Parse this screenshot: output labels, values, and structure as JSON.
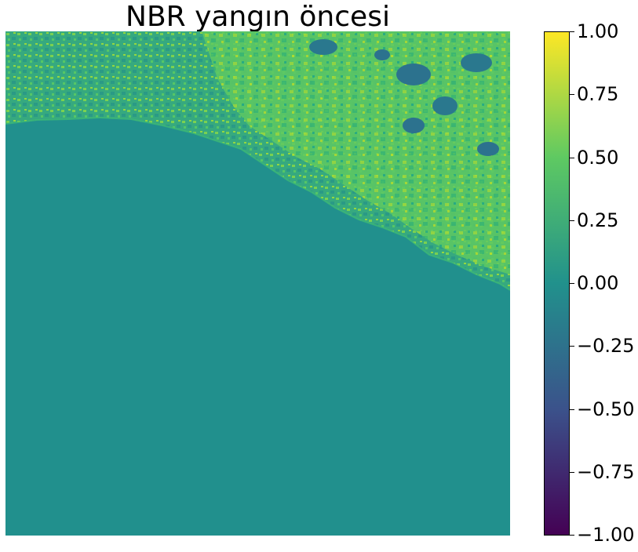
{
  "figure": {
    "title": "NBR yangın öncesi"
  },
  "image": {
    "description_colormap": "viridis"
  },
  "colorbar": {
    "colormap": "viridis",
    "range": [
      -1.0,
      1.0
    ],
    "ticks": [
      {
        "value": 1.0,
        "label": "1.00"
      },
      {
        "value": 0.75,
        "label": "0.75"
      },
      {
        "value": 0.5,
        "label": "0.50"
      },
      {
        "value": 0.25,
        "label": "0.25"
      },
      {
        "value": 0.0,
        "label": "0.00"
      },
      {
        "value": -0.25,
        "label": "−0.25"
      },
      {
        "value": -0.5,
        "label": "−0.50"
      },
      {
        "value": -0.75,
        "label": "−0.75"
      },
      {
        "value": -1.0,
        "label": "−1.00"
      }
    ],
    "colors": {
      "top": "#fde725",
      "upper": "#5ec962",
      "mid": "#21918c",
      "lower": "#3b528b",
      "bottom": "#440154"
    }
  }
}
